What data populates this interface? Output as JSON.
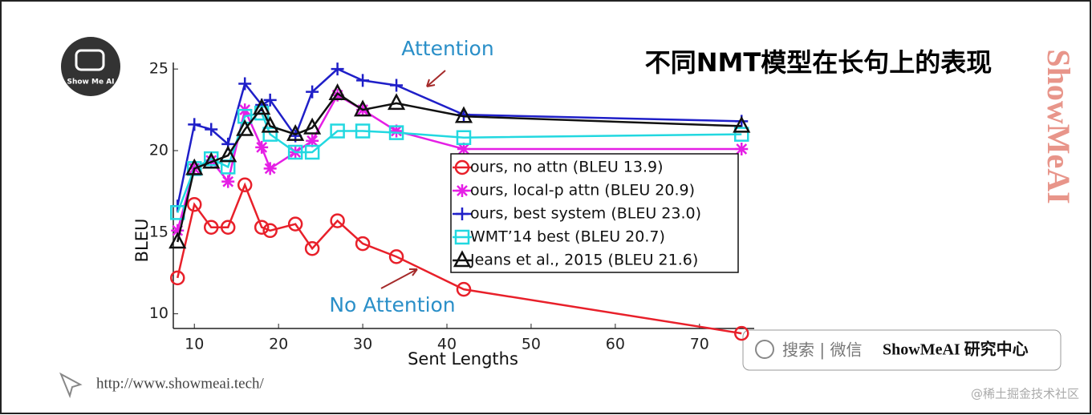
{
  "slide": {
    "title": "不同NMT模型在长句上的表现",
    "logo_text": "Show Me AI",
    "url": "http://www.showmeai.tech/",
    "search_label": "搜索 | 微信",
    "brand": "ShowMeAI 研究中心",
    "watermark": "@稀土掘金技术社区",
    "side_brand": "ShowMeAI"
  },
  "chart_data": {
    "type": "line",
    "xlabel": "Sent Lengths",
    "ylabel": "BLEU",
    "annotations": [
      "Attention",
      "No Attention"
    ],
    "x": [
      8,
      10,
      12,
      14,
      16,
      18,
      19,
      22,
      24,
      27,
      30,
      34,
      42,
      75
    ],
    "xlim": [
      7.5,
      76.5
    ],
    "xticks": [
      10,
      20,
      30,
      40,
      50,
      60,
      70
    ],
    "ylim": [
      9.1,
      25.4
    ],
    "yticks": [
      10,
      15,
      20,
      25
    ],
    "legend": "center-right",
    "series": [
      {
        "name": "ours, no attn (BLEU 13.9)",
        "color": "#e8202a",
        "marker": "circle",
        "values": [
          12.2,
          16.7,
          15.3,
          15.3,
          17.9,
          15.3,
          15.1,
          15.5,
          14.0,
          15.7,
          14.3,
          13.5,
          11.5,
          8.8
        ]
      },
      {
        "name": "ours, local-p attn (BLEU 20.9)",
        "color": "#e51fe5",
        "marker": "asterisk",
        "values": [
          15.1,
          18.9,
          19.4,
          18.1,
          22.5,
          20.2,
          18.9,
          19.9,
          20.6,
          23.4,
          22.5,
          21.2,
          20.1,
          20.1
        ]
      },
      {
        "name": "ours, best system (BLEU 23.0)",
        "color": "#1f1fc8",
        "marker": "plus",
        "values": [
          16.6,
          21.6,
          21.3,
          20.4,
          24.1,
          22.8,
          23.1,
          20.9,
          23.6,
          25.0,
          24.3,
          24.0,
          22.2,
          21.8
        ]
      },
      {
        "name": "WMT’14 best (BLEU 20.7)",
        "color": "#22d8e0",
        "marker": "square",
        "values": [
          16.2,
          18.9,
          19.5,
          19.0,
          22.1,
          22.3,
          21.0,
          19.9,
          19.9,
          21.2,
          21.2,
          21.1,
          20.8,
          21.0
        ]
      },
      {
        "name": "Jeans et al., 2015 (BLEU 21.6)",
        "color": "#111111",
        "marker": "triangle",
        "values": [
          14.4,
          18.9,
          19.3,
          19.7,
          21.3,
          22.6,
          21.5,
          21.0,
          21.4,
          23.5,
          22.5,
          22.9,
          22.1,
          21.5
        ]
      }
    ]
  }
}
